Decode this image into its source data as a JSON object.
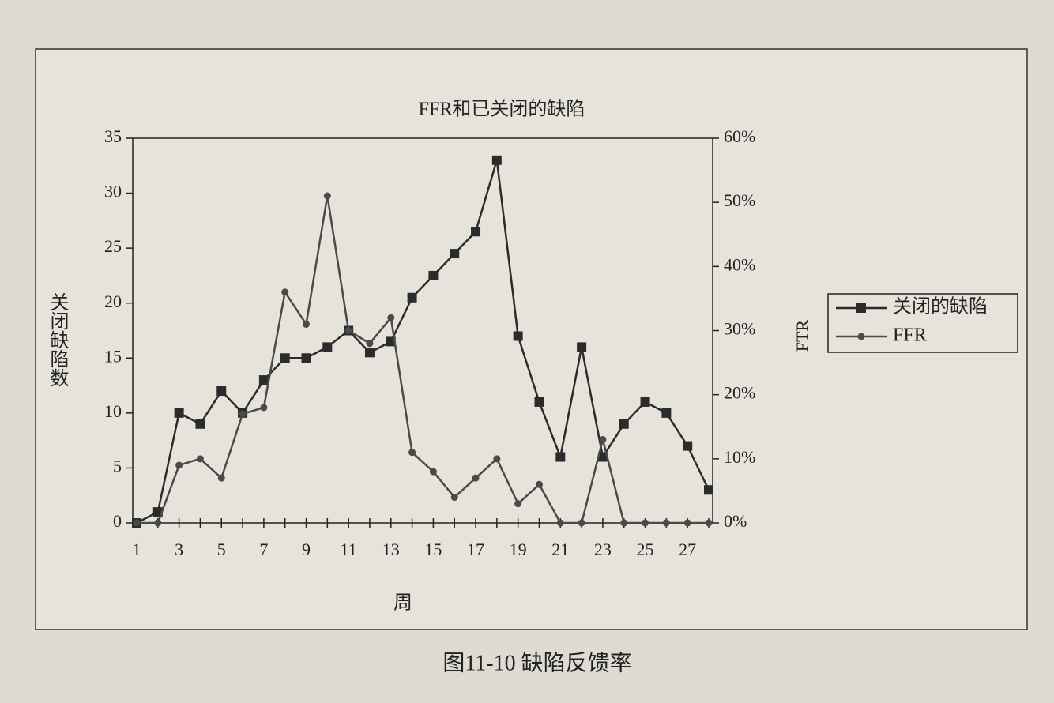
{
  "chart_data": {
    "type": "line",
    "title": "FFR和已关闭的缺陷",
    "x_label": "周",
    "y_label": "关闭缺陷数",
    "y2_label": "FTR",
    "caption": "图11-10  缺陷反馈率",
    "categories": [
      "1",
      null,
      "3",
      null,
      "5",
      null,
      "7",
      null,
      "9",
      null,
      "11",
      null,
      "13",
      null,
      "15",
      null,
      "17",
      null,
      "19",
      null,
      "21",
      null,
      "23",
      null,
      "25",
      null,
      "27",
      null
    ],
    "series": [
      {
        "name": "关闭的缺陷",
        "color": "#2b2b2b",
        "marker": "square",
        "values": [
          0,
          1,
          10,
          9,
          12,
          10,
          13,
          15,
          15,
          16,
          17.5,
          15.5,
          16.5,
          20.5,
          22.5,
          24.5,
          26.5,
          33,
          17,
          11,
          6,
          16,
          6,
          9,
          11,
          10,
          7,
          3
        ]
      },
      {
        "name": "FFR",
        "color": "#4a4a4a",
        "marker": "circle",
        "axis": "y2",
        "values": [
          0,
          0,
          9,
          10,
          7,
          17,
          18,
          36,
          31,
          51,
          30,
          28,
          32,
          11,
          8,
          4,
          7,
          10,
          3,
          6,
          0,
          0,
          13,
          0,
          0,
          0,
          0,
          0
        ]
      }
    ],
    "ylim": [
      0,
      35
    ],
    "yticks": [
      0,
      5,
      10,
      15,
      20,
      25,
      30,
      35
    ],
    "y2lim": [
      0,
      60
    ],
    "y2ticks": [
      {
        "value": 0,
        "label": "0%"
      },
      {
        "value": 10,
        "label": "10%"
      },
      {
        "value": 20,
        "label": "20%"
      },
      {
        "value": 30,
        "label": "30%"
      },
      {
        "value": 40,
        "label": "40%"
      },
      {
        "value": 50,
        "label": "50%"
      },
      {
        "value": 60,
        "label": "60%"
      }
    ],
    "legend": "right",
    "grid": false
  }
}
